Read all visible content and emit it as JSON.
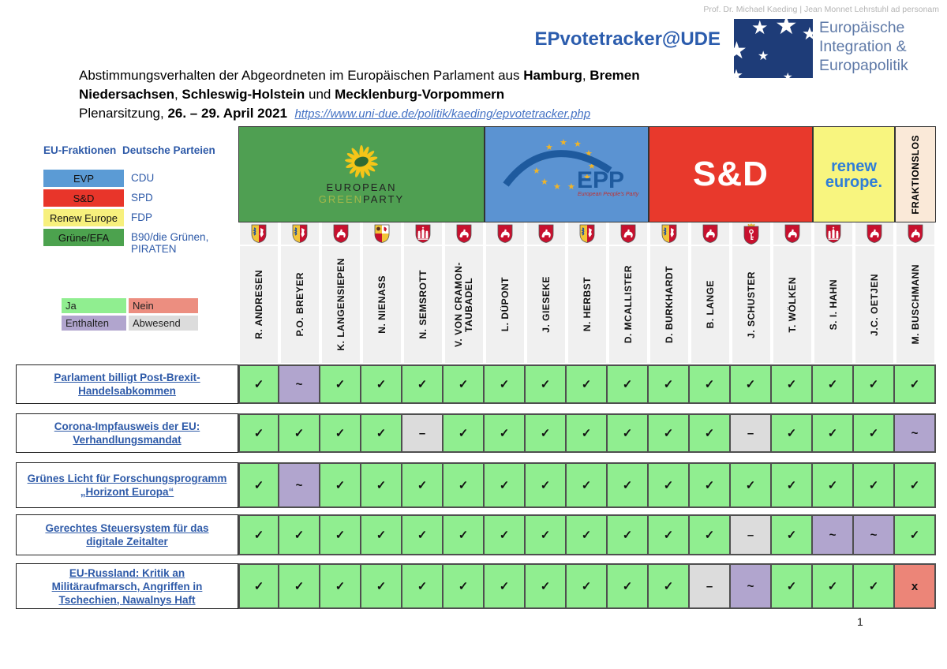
{
  "page": {
    "attribution": "Prof. Dr. Michael Kaeding | Jean Monnet Lehrstuhl ad personam",
    "brand": "EPvotetracker@UDE",
    "institute_line1": "Europäische",
    "institute_line2": "Integration &",
    "institute_line3": "Europapolitik",
    "page_number": "1"
  },
  "title": {
    "t1": "Abstimmungsverhalten der Abgeordneten im Europäischen Parlament aus ",
    "b1": "Hamburg",
    "t2": ", ",
    "b2": "Bremen",
    "b3": "Niedersachsen",
    "t3": ", ",
    "b4": "Schleswig-Holstein",
    "t4": " und ",
    "b5": "Mecklenburg-Vorpommern",
    "t5": "Plenarsitzung, ",
    "b6": "26. – 29. April 2021",
    "link": "https://www.uni-due.de/politik/kaeding/epvotetracker.php"
  },
  "legend": {
    "fraktionen_header": "EU-Fraktionen",
    "parteien_header": "Deutsche Parteien",
    "fraktionen": [
      {
        "label": "EVP",
        "color": "#5b9bd5",
        "party": "CDU"
      },
      {
        "label": "S&D",
        "color": "#e8352a",
        "party": "SPD"
      },
      {
        "label": "Renew Europe",
        "color": "#f7f07d",
        "party": "FDP"
      },
      {
        "label": "Grüne/EFA",
        "color": "#4ca24e",
        "party": "B90/die Grünen, PIRATEN"
      }
    ],
    "votes": [
      {
        "id": "ja",
        "label": "Ja",
        "color": "#90ee90"
      },
      {
        "id": "nein",
        "label": "Nein",
        "color": "#ec8e80"
      },
      {
        "id": "enthalten",
        "label": "Enthalten",
        "color": "#b1a5ce"
      },
      {
        "id": "abwesend",
        "label": "Abwesend",
        "color": "#dcdcdc"
      }
    ]
  },
  "groups": [
    {
      "id": "greens",
      "name": "European Green Party",
      "color": "#4f9f52",
      "span": 6,
      "text1": "EUROPEAN",
      "text2": "GREEN",
      "text3": "PARTY"
    },
    {
      "id": "epp",
      "name": "EPP",
      "color": "#5b93d2",
      "span": 4,
      "text1": "EPP",
      "text2": "European People's Party"
    },
    {
      "id": "sd",
      "name": "S&D",
      "color": "#e8392c",
      "span": 4,
      "text1": "S&D"
    },
    {
      "id": "renew",
      "name": "Renew Europe",
      "color": "#f8f57f",
      "span": 2,
      "text1": "renew",
      "text2": "europe."
    },
    {
      "id": "none",
      "name": "Fraktionslos",
      "color": "#fae9d8",
      "span": 1,
      "text1": "FRAKTIONSLOS"
    }
  ],
  "meps": [
    {
      "name": "R. ANDRESEN",
      "state": "schleswig-holstein"
    },
    {
      "name": "P.O. BREYER",
      "state": "schleswig-holstein"
    },
    {
      "name": "K. LANGENSIEPEN",
      "state": "niedersachsen"
    },
    {
      "name": "N. NIENASS",
      "state": "mecklenburg-vorpommern"
    },
    {
      "name": "N. SEMSROTT",
      "state": "hamburg"
    },
    {
      "name": "V. VON CRAMON-TAUBADEL",
      "state": "niedersachsen"
    },
    {
      "name": "L. DÜPONT",
      "state": "niedersachsen"
    },
    {
      "name": "J. GIESEKE",
      "state": "niedersachsen"
    },
    {
      "name": "N. HERBST",
      "state": "schleswig-holstein"
    },
    {
      "name": "D. MCALLISTER",
      "state": "niedersachsen"
    },
    {
      "name": "D. BURKHARDT",
      "state": "schleswig-holstein"
    },
    {
      "name": "B. LANGE",
      "state": "niedersachsen"
    },
    {
      "name": "J. SCHUSTER",
      "state": "bremen"
    },
    {
      "name": "T. WÖLKEN",
      "state": "niedersachsen"
    },
    {
      "name": "S. I. HAHN",
      "state": "hamburg"
    },
    {
      "name": "J.C. OETJEN",
      "state": "niedersachsen"
    },
    {
      "name": "M. BUSCHMANN",
      "state": "niedersachsen"
    }
  ],
  "rows": [
    {
      "label": "Parlament billigt Post-Brexit-Handelsabkommen",
      "votes": [
        "ja",
        "enthalten",
        "ja",
        "ja",
        "ja",
        "ja",
        "ja",
        "ja",
        "ja",
        "ja",
        "ja",
        "ja",
        "ja",
        "ja",
        "ja",
        "ja",
        "ja"
      ]
    },
    {
      "label": "Corona-Impfausweis der EU: Verhandlungsmandat",
      "votes": [
        "ja",
        "ja",
        "ja",
        "ja",
        "abwesend",
        "ja",
        "ja",
        "ja",
        "ja",
        "ja",
        "ja",
        "ja",
        "abwesend",
        "ja",
        "ja",
        "ja",
        "enthalten"
      ]
    },
    {
      "label": "Grünes Licht für Forschungsprogramm „Horizont Europa“",
      "votes": [
        "ja",
        "enthalten",
        "ja",
        "ja",
        "ja",
        "ja",
        "ja",
        "ja",
        "ja",
        "ja",
        "ja",
        "ja",
        "ja",
        "ja",
        "ja",
        "ja",
        "ja"
      ]
    },
    {
      "label": "Gerechtes Steuersystem für das digitale Zeitalter",
      "votes": [
        "ja",
        "ja",
        "ja",
        "ja",
        "ja",
        "ja",
        "ja",
        "ja",
        "ja",
        "ja",
        "ja",
        "ja",
        "abwesend",
        "ja",
        "enthalten",
        "enthalten",
        "ja"
      ]
    },
    {
      "label": "EU-Russland: Kritik an Militäraufmarsch, Angriffen in Tschechien, Nawalnys Haft",
      "votes": [
        "ja",
        "ja",
        "ja",
        "ja",
        "ja",
        "ja",
        "ja",
        "ja",
        "ja",
        "ja",
        "ja",
        "abwesend",
        "enthalten",
        "ja",
        "ja",
        "ja",
        "nein"
      ]
    }
  ],
  "vote_symbols": {
    "ja": "✓",
    "nein": "x",
    "enthalten": "~",
    "abwesend": "–"
  },
  "vote_colors": {
    "ja": "#90ee90",
    "nein": "#ec8578",
    "enthalten": "#b1a5ce",
    "abwesend": "#dcdcdc"
  }
}
